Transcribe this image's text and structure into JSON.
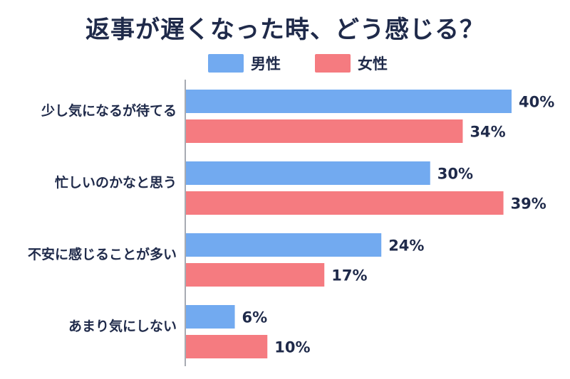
{
  "chart_data": {
    "type": "bar",
    "orientation": "horizontal",
    "title": "返事が遅くなった時、どう感じる？",
    "categories": [
      "少し気になるが待てる",
      "忙しいのかなと思う",
      "不安に感じることが多い",
      "あまり気にしない"
    ],
    "series": [
      {
        "name": "男性",
        "color": "#72aaf0",
        "values": [
          40,
          30,
          24,
          6
        ],
        "labels": [
          "40%",
          "30%",
          "24%",
          "6%"
        ]
      },
      {
        "name": "女性",
        "color": "#f57b80",
        "values": [
          34,
          39,
          17,
          10
        ],
        "labels": [
          "34%",
          "39%",
          "17%",
          "10%"
        ]
      }
    ],
    "xlim": [
      0,
      41
    ],
    "legend": "top-center",
    "grid": false
  }
}
